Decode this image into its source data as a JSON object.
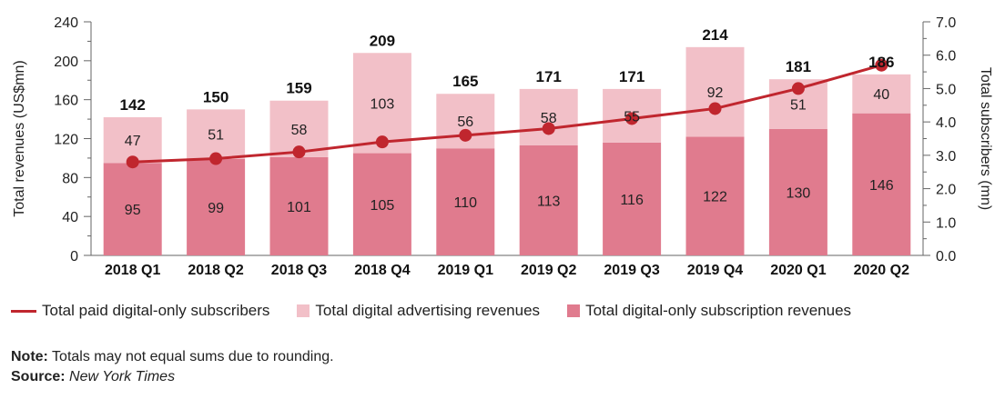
{
  "chart_data": {
    "type": "bar",
    "stacked": true,
    "categories": [
      "2018 Q1",
      "2018 Q2",
      "2018 Q3",
      "2018 Q4",
      "2019 Q1",
      "2019 Q2",
      "2019 Q3",
      "2019 Q4",
      "2020 Q1",
      "2020 Q2"
    ],
    "series": [
      {
        "name": "Total digital-only subscription revenues",
        "type": "bar",
        "axis": "left",
        "color": "#e07b8e",
        "values": [
          95,
          99,
          101,
          105,
          110,
          113,
          116,
          122,
          130,
          146
        ]
      },
      {
        "name": "Total digital advertising revenues",
        "type": "bar",
        "axis": "left",
        "color": "#f2c0c8",
        "values": [
          47,
          51,
          58,
          103,
          56,
          58,
          55,
          92,
          51,
          40
        ]
      },
      {
        "name": "Total paid digital-only subscribers",
        "type": "line",
        "axis": "right",
        "color": "#c0262e",
        "values": [
          2.8,
          2.9,
          3.1,
          3.4,
          3.6,
          3.8,
          4.1,
          4.4,
          5.0,
          5.7
        ]
      }
    ],
    "totals": [
      142,
      150,
      159,
      209,
      165,
      171,
      171,
      214,
      181,
      186
    ],
    "ylabel": "Total revenues (US$mn)",
    "ylabel_right": "Total subscribers (mn)",
    "ylim": [
      0,
      240
    ],
    "yticks": [
      "0",
      "40",
      "80",
      "120",
      "160",
      "200",
      "240"
    ],
    "ylim_right": [
      0,
      7
    ],
    "yticks_right": [
      "0.0",
      "1.0",
      "2.0",
      "3.0",
      "4.0",
      "5.0",
      "6.0",
      "7.0"
    ],
    "legend_position": "bottom-left"
  },
  "legend": [
    {
      "label": "Total paid digital-only subscribers",
      "kind": "line",
      "color": "#c0262e"
    },
    {
      "label": "Total digital advertising revenues",
      "kind": "box",
      "color": "#f2c0c8"
    },
    {
      "label": "Total digital-only subscription revenues",
      "kind": "box",
      "color": "#e07b8e"
    }
  ],
  "note": {
    "label": "Note:",
    "text": " Totals may not equal sums due to rounding."
  },
  "source": {
    "label": "Source:",
    "text": "New York Times"
  }
}
